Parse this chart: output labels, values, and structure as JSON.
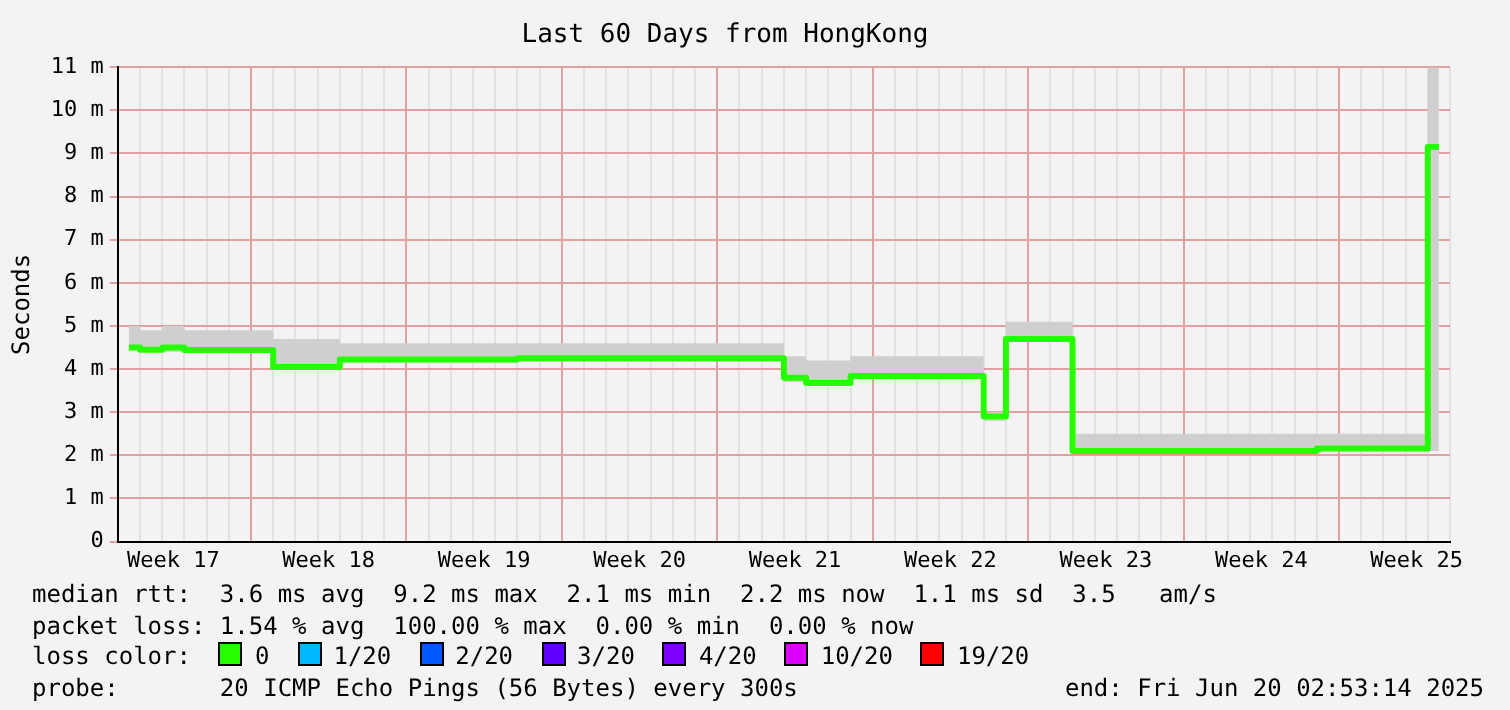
{
  "chart_data": {
    "type": "step",
    "title": "Last 60 Days from HongKong",
    "ylabel": "Seconds",
    "legend_title": "loss color:",
    "legend": "bottom",
    "grid": true,
    "categories": [
      null,
      null,
      "Week 17",
      null,
      null,
      null,
      null,
      null,
      null,
      "Week 18",
      null,
      null,
      null,
      null,
      null,
      null,
      "Week 19",
      null,
      null,
      null,
      null,
      null,
      null,
      "Week 20",
      null,
      null,
      null,
      null,
      null,
      null,
      "Week 21",
      null,
      null,
      null,
      null,
      null,
      null,
      "Week 22",
      null,
      null,
      null,
      null,
      null,
      null,
      "Week 23",
      null,
      null,
      null,
      null,
      null,
      null,
      "Week 24",
      null,
      null,
      null,
      null,
      null,
      null,
      "Week 25",
      null
    ],
    "ylim": [
      0,
      11
    ],
    "yticks": [
      0,
      {
        "value": 1,
        "label": "1 m"
      },
      {
        "value": 2,
        "label": "2 m"
      },
      {
        "value": 3,
        "label": "3 m"
      },
      {
        "value": 4,
        "label": "4 m"
      },
      {
        "value": 5,
        "label": "5 m"
      },
      {
        "value": 6,
        "label": "6 m"
      },
      {
        "value": 7,
        "label": "7 m"
      },
      {
        "value": 8,
        "label": "8 m"
      },
      {
        "value": 9,
        "label": "9 m"
      },
      {
        "value": 10,
        "label": "10 m"
      },
      {
        "value": 11,
        "label": "11 m"
      }
    ],
    "series": [
      {
        "name": "0",
        "color": "#26ff00",
        "values": [
          4.5,
          4.45,
          4.5,
          4.44,
          4.44,
          4.44,
          4.44,
          4.05,
          4.05,
          4.05,
          4.22,
          4.22,
          4.22,
          4.22,
          4.22,
          4.22,
          4.22,
          4.22,
          4.25,
          4.25,
          4.25,
          4.25,
          4.25,
          4.25,
          4.25,
          4.25,
          4.25,
          4.25,
          4.25,
          4.25,
          3.8,
          3.68,
          3.68,
          3.84,
          3.84,
          3.84,
          3.84,
          3.84,
          3.84,
          2.9,
          4.7,
          4.7,
          4.7,
          2.1,
          2.1,
          2.1,
          2.1,
          2.1,
          2.1,
          2.1,
          2.1,
          2.1,
          2.1,
          2.1,
          2.16,
          2.16,
          2.16,
          2.16,
          2.16,
          9.15
        ],
        "lower": [
          4.45,
          4.4,
          4.4,
          4.38,
          4.38,
          4.38,
          4.38,
          4.0,
          4.0,
          4.0,
          4.15,
          4.15,
          4.15,
          4.15,
          4.15,
          4.15,
          4.15,
          4.15,
          4.18,
          4.18,
          4.18,
          4.18,
          4.18,
          4.18,
          4.18,
          4.18,
          4.18,
          4.18,
          4.18,
          4.18,
          3.7,
          3.62,
          3.62,
          3.78,
          3.78,
          3.78,
          3.78,
          3.78,
          3.78,
          2.8,
          4.65,
          4.65,
          4.65,
          2.08,
          2.08,
          2.08,
          2.08,
          2.08,
          2.08,
          2.08,
          2.08,
          2.08,
          2.08,
          2.08,
          2.1,
          2.1,
          2.1,
          2.1,
          2.1,
          2.1
        ],
        "upper": [
          5.0,
          4.9,
          5.0,
          4.9,
          4.9,
          4.9,
          4.9,
          4.7,
          4.7,
          4.7,
          4.6,
          4.6,
          4.6,
          4.6,
          4.6,
          4.6,
          4.6,
          4.6,
          4.6,
          4.6,
          4.6,
          4.6,
          4.6,
          4.6,
          4.6,
          4.6,
          4.6,
          4.6,
          4.6,
          4.6,
          4.3,
          4.2,
          4.2,
          4.3,
          4.3,
          4.3,
          4.3,
          4.3,
          4.3,
          3.0,
          5.1,
          5.1,
          5.1,
          2.5,
          2.5,
          2.5,
          2.5,
          2.5,
          2.5,
          2.5,
          2.5,
          2.5,
          2.5,
          2.5,
          2.5,
          2.5,
          2.5,
          2.5,
          2.5,
          11
        ]
      },
      {
        "name": "1/20",
        "color": "#00b8ff",
        "values": [
          null,
          null,
          null,
          null,
          null,
          null,
          null,
          null,
          null,
          null,
          null,
          null,
          null,
          null,
          null,
          null,
          null,
          null,
          null,
          null,
          null,
          null,
          null,
          null,
          null,
          null,
          null,
          null,
          null,
          null,
          null,
          null,
          null,
          null,
          null,
          null,
          null,
          null,
          null,
          null,
          null,
          null,
          null,
          null,
          null,
          null,
          null,
          null,
          null,
          null,
          null,
          null,
          null,
          null,
          null,
          null,
          null,
          null,
          null,
          null
        ]
      },
      {
        "name": "2/20",
        "color": "#0059ff",
        "values": [
          null,
          null,
          null,
          null,
          null,
          null,
          null,
          null,
          null,
          null,
          null,
          null,
          null,
          null,
          null,
          null,
          null,
          null,
          null,
          null,
          null,
          null,
          null,
          null,
          null,
          null,
          null,
          null,
          null,
          null,
          null,
          null,
          null,
          null,
          null,
          null,
          null,
          null,
          null,
          null,
          null,
          null,
          null,
          null,
          null,
          null,
          null,
          null,
          null,
          null,
          null,
          null,
          null,
          null,
          null,
          null,
          null,
          null,
          null,
          null
        ]
      },
      {
        "name": "3/20",
        "color": "#5e00ff",
        "values": [
          null,
          null,
          null,
          null,
          null,
          null,
          null,
          null,
          null,
          null,
          null,
          null,
          null,
          null,
          null,
          null,
          null,
          null,
          null,
          null,
          null,
          null,
          null,
          null,
          null,
          null,
          null,
          null,
          null,
          null,
          null,
          null,
          null,
          null,
          null,
          null,
          null,
          null,
          null,
          null,
          null,
          null,
          null,
          null,
          null,
          null,
          null,
          null,
          null,
          null,
          null,
          null,
          null,
          null,
          null,
          null,
          null,
          null,
          null,
          null
        ]
      },
      {
        "name": "4/20",
        "color": "#7e00ff",
        "values": [
          null,
          null,
          null,
          null,
          null,
          null,
          null,
          null,
          null,
          null,
          null,
          null,
          null,
          null,
          null,
          null,
          null,
          null,
          null,
          null,
          null,
          null,
          null,
          null,
          null,
          null,
          null,
          null,
          null,
          null,
          null,
          null,
          null,
          null,
          null,
          null,
          null,
          null,
          null,
          null,
          null,
          null,
          null,
          null,
          null,
          null,
          null,
          null,
          null,
          null,
          null,
          null,
          null,
          null,
          null,
          null,
          null,
          null,
          null,
          null
        ]
      },
      {
        "name": "10/20",
        "color": "#dd00ff",
        "values": [
          null,
          null,
          null,
          null,
          null,
          null,
          null,
          null,
          null,
          null,
          null,
          null,
          null,
          null,
          null,
          null,
          null,
          null,
          null,
          null,
          null,
          null,
          null,
          null,
          null,
          null,
          null,
          null,
          null,
          null,
          null,
          null,
          null,
          null,
          null,
          null,
          null,
          null,
          null,
          null,
          null,
          null,
          null,
          null,
          null,
          null,
          null,
          null,
          null,
          null,
          null,
          null,
          null,
          null,
          null,
          null,
          null,
          null,
          null,
          null
        ]
      },
      {
        "name": "19/20",
        "color": "#ff0000",
        "values": [
          null,
          null,
          null,
          null,
          null,
          null,
          null,
          null,
          null,
          null,
          null,
          null,
          null,
          null,
          null,
          null,
          null,
          null,
          null,
          null,
          null,
          null,
          null,
          null,
          null,
          null,
          null,
          null,
          null,
          null,
          null,
          null,
          null,
          null,
          null,
          null,
          null,
          null,
          null,
          null,
          null,
          null,
          null,
          null,
          null,
          null,
          null,
          null,
          null,
          null,
          null,
          null,
          null,
          null,
          null,
          null,
          null,
          null,
          null,
          null
        ]
      }
    ],
    "annotations": [
      "median rtt:  3.6 ms avg  9.2 ms max  2.1 ms min  2.2 ms now  1.1 ms sd  3.5   am/s",
      "packet loss: 1.54 % avg  100.00 % max  0.00 % min  0.00 % now",
      "probe:       20 ICMP Echo Pings (56 Bytes) every 300s",
      "end: Fri Jun 20 02:53:14 2025"
    ]
  }
}
